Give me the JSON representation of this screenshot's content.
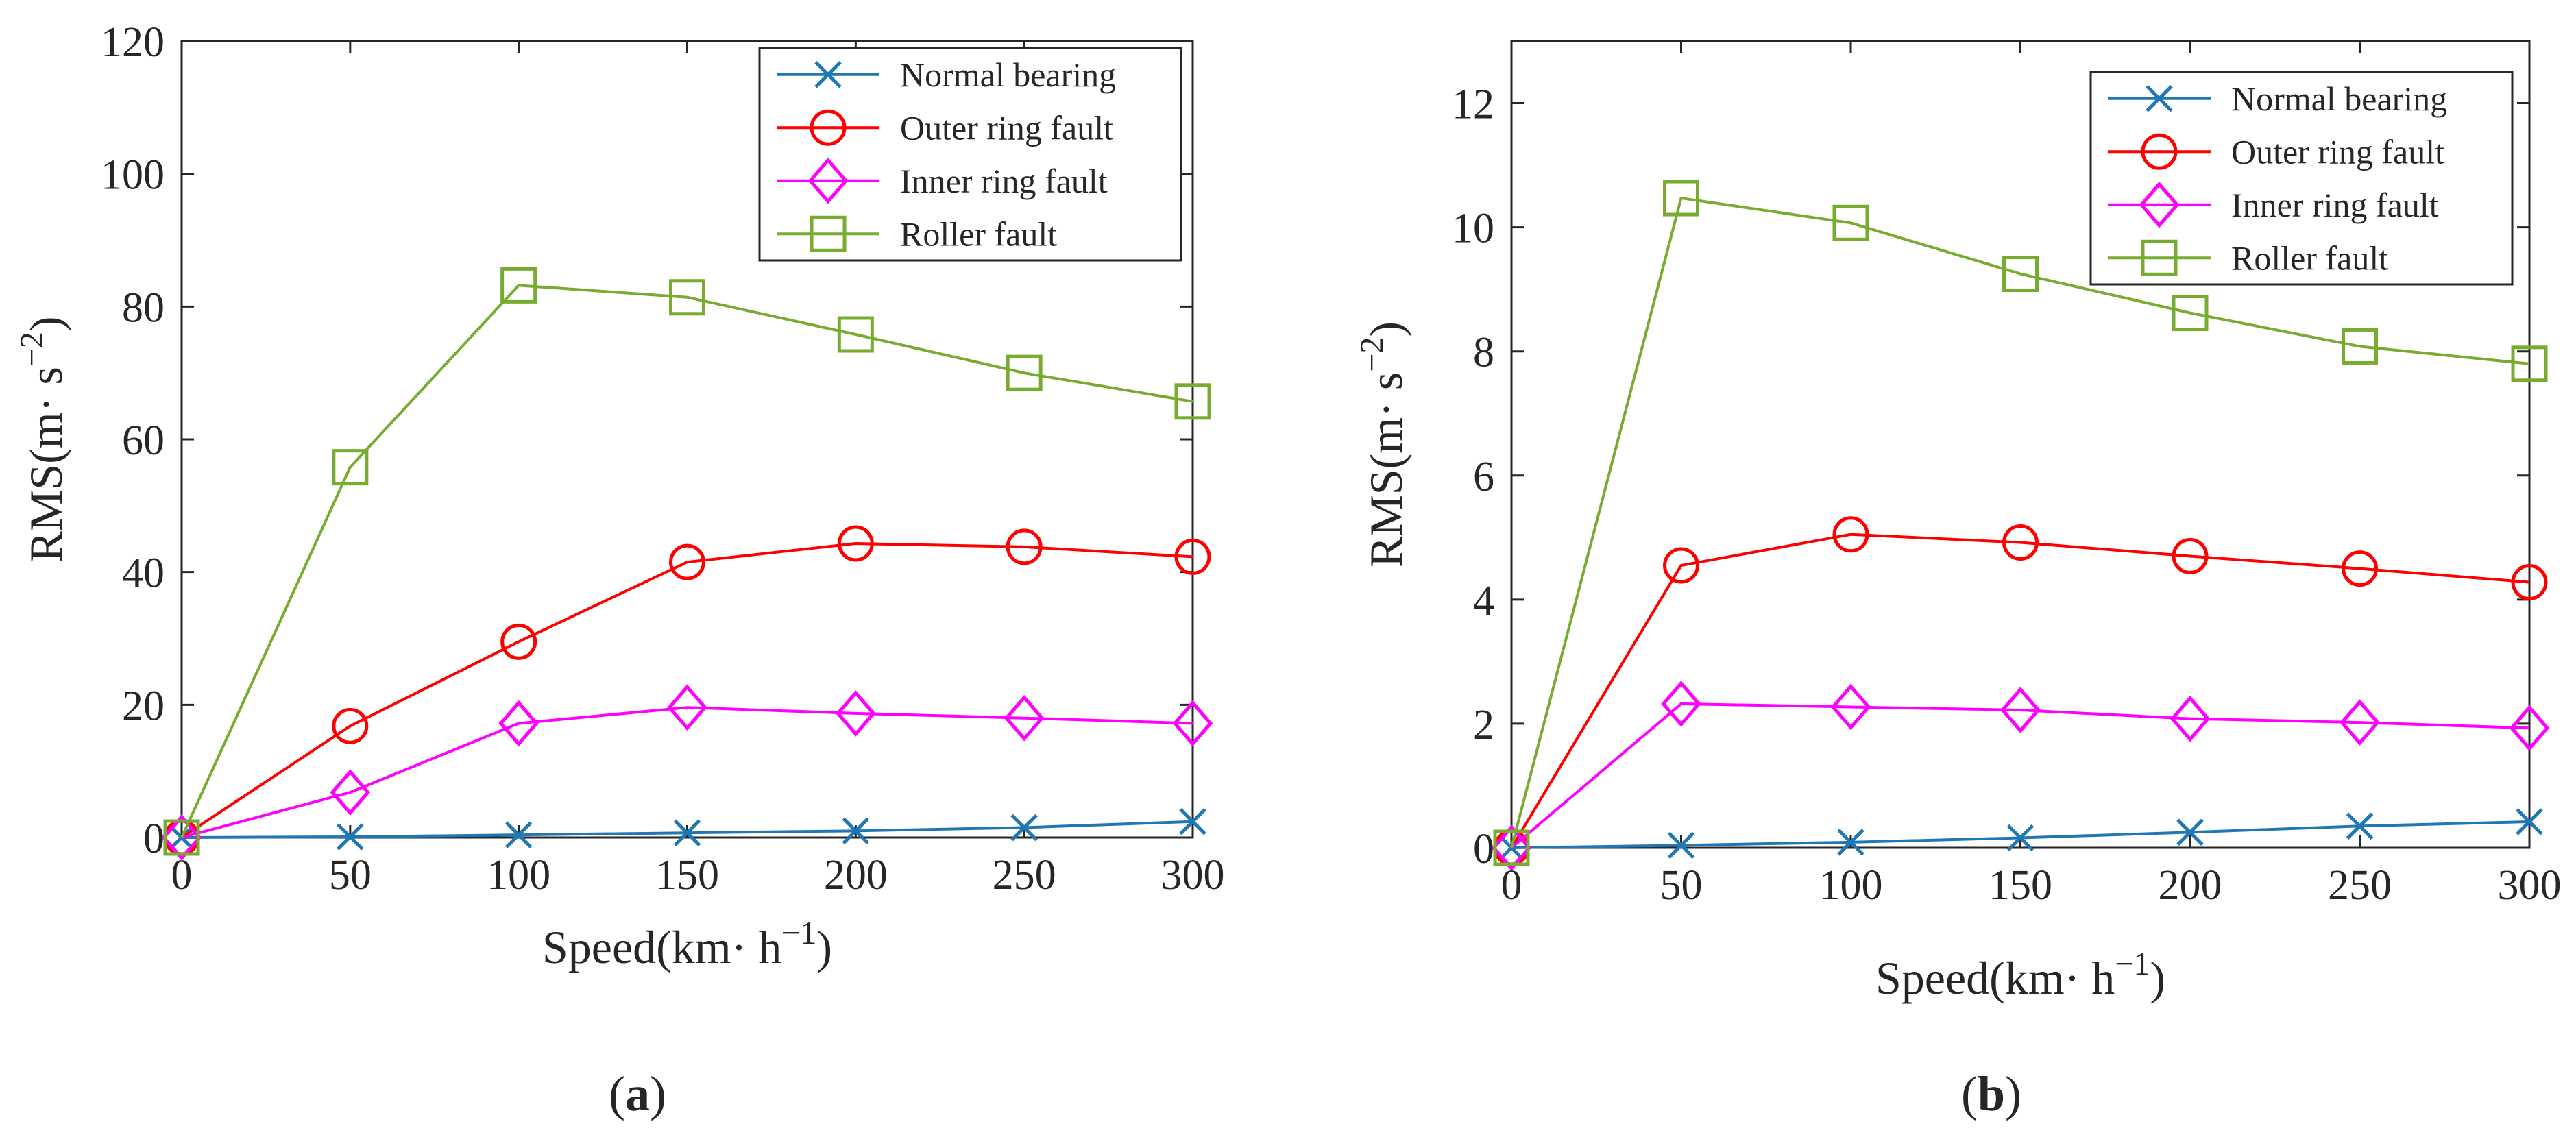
{
  "colors": {
    "normal": "#1f77b4",
    "outer": "#ff0000",
    "inner": "#ff00ff",
    "roller": "#77ac30",
    "axis": "#262626"
  },
  "chart_data": [
    {
      "id": "a",
      "type": "line",
      "panel_label": "a",
      "xlabel": "Speed(km· h",
      "xlabel_exp": "−1",
      "xlabel_close": ")",
      "ylabel": "RMS(m· s",
      "ylabel_exp": "−2",
      "ylabel_close": ")",
      "x": [
        0,
        50,
        100,
        150,
        200,
        250,
        300
      ],
      "xlim": [
        0,
        300
      ],
      "ylim": [
        0,
        120
      ],
      "xticks": [
        0,
        50,
        100,
        150,
        200,
        250,
        300
      ],
      "yticks": [
        0,
        20,
        40,
        60,
        80,
        100,
        120
      ],
      "grid": false,
      "legend_position": "top-right",
      "series": [
        {
          "key": "normal",
          "name": "Normal bearing",
          "marker": "x",
          "values": [
            0,
            0.1,
            0.4,
            0.7,
            1.0,
            1.5,
            2.4
          ]
        },
        {
          "key": "outer",
          "name": "Outer ring fault",
          "marker": "circle",
          "values": [
            0,
            16.8,
            29.5,
            41.5,
            44.3,
            43.8,
            42.3
          ]
        },
        {
          "key": "inner",
          "name": "Inner ring fault",
          "marker": "diamond",
          "values": [
            0,
            6.8,
            17.2,
            19.6,
            18.7,
            18.0,
            17.2
          ]
        },
        {
          "key": "roller",
          "name": "Roller fault",
          "marker": "square",
          "values": [
            0,
            55.8,
            83.2,
            81.4,
            75.8,
            70.0,
            65.7
          ]
        }
      ]
    },
    {
      "id": "b",
      "type": "line",
      "panel_label": "b",
      "xlabel": "Speed(km· h",
      "xlabel_exp": "−1",
      "xlabel_close": ")",
      "ylabel": "RMS(m· s",
      "ylabel_exp": "−2",
      "ylabel_close": ")",
      "x": [
        0,
        50,
        100,
        150,
        200,
        250,
        300
      ],
      "xlim": [
        0,
        300
      ],
      "ylim": [
        0,
        13
      ],
      "xticks": [
        0,
        50,
        100,
        150,
        200,
        250,
        300
      ],
      "yticks": [
        0,
        2,
        4,
        6,
        8,
        10,
        12
      ],
      "grid": false,
      "legend_position": "top-right",
      "series": [
        {
          "key": "normal",
          "name": "Normal bearing",
          "marker": "x",
          "values": [
            0,
            0.04,
            0.09,
            0.16,
            0.25,
            0.35,
            0.42
          ]
        },
        {
          "key": "outer",
          "name": "Outer ring fault",
          "marker": "circle",
          "values": [
            0,
            4.55,
            5.05,
            4.92,
            4.7,
            4.5,
            4.28
          ]
        },
        {
          "key": "inner",
          "name": "Inner ring fault",
          "marker": "diamond",
          "values": [
            0,
            2.32,
            2.27,
            2.22,
            2.08,
            2.02,
            1.93
          ]
        },
        {
          "key": "roller",
          "name": "Roller fault",
          "marker": "square",
          "values": [
            0,
            10.47,
            10.07,
            9.25,
            8.62,
            8.08,
            7.8
          ]
        }
      ]
    }
  ]
}
